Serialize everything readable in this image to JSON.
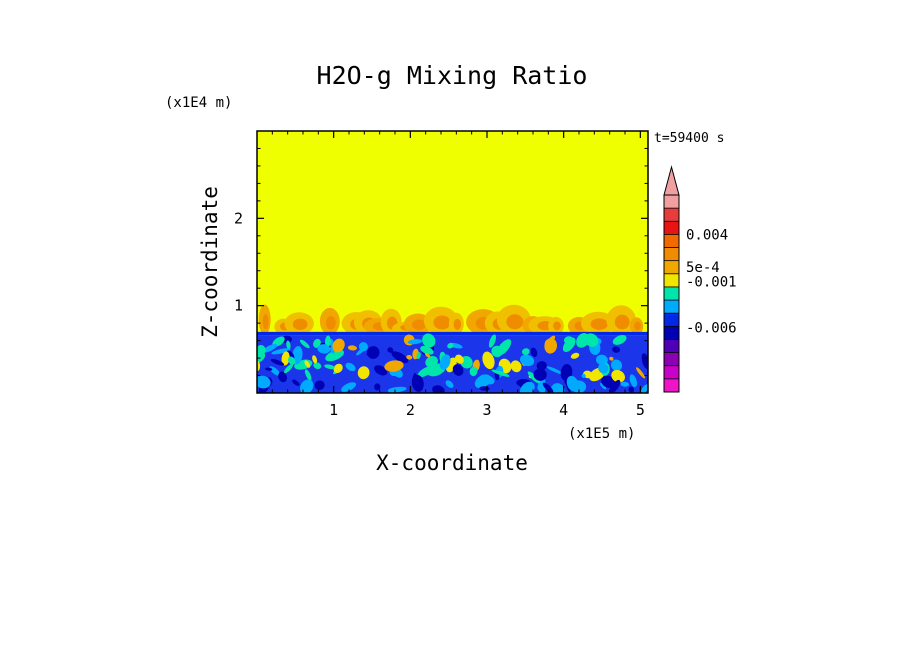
{
  "chart_data": {
    "type": "heatmap",
    "title": "H2O-g Mixing Ratio",
    "xlabel": "X-coordinate",
    "ylabel": "Z-coordinate",
    "x_scale_label": "(x1E5 m)",
    "y_scale_label": "(x1E4 m)",
    "time_label": "t=59400 s",
    "xlim": [
      0,
      5.1
    ],
    "ylim": [
      0,
      3.0
    ],
    "x_ticks": [
      1,
      2,
      3,
      4,
      5
    ],
    "y_ticks": [
      1,
      2
    ],
    "grid": false,
    "regions": [
      {
        "name": "upper-layer",
        "z_from": 0.7,
        "z_to": 3.0,
        "color": "#f0ff00"
      },
      {
        "name": "boundary-band",
        "z_from": 0.66,
        "z_to": 0.7,
        "color": "#0028e6"
      },
      {
        "name": "lower-layer",
        "z_from": 0.0,
        "z_to": 0.66,
        "color": "#1a35ea"
      }
    ],
    "colorbar": {
      "labels": [
        {
          "text": "0.004",
          "level": 0.004
        },
        {
          "text": "5e-4",
          "level": 0.0005
        },
        {
          "text": "-0.001",
          "level": -0.001
        },
        {
          "text": "-0.006",
          "level": -0.006
        }
      ],
      "colors_top_to_bottom": [
        "#f0a0a0",
        "#e83c3c",
        "#e81414",
        "#f06a00",
        "#f08c00",
        "#f0a800",
        "#f0e600",
        "#00e6aa",
        "#00aaff",
        "#0028e6",
        "#0000b4",
        "#5000b4",
        "#8c00b4",
        "#c800c8",
        "#f014c8"
      ],
      "extend_top": true
    }
  }
}
